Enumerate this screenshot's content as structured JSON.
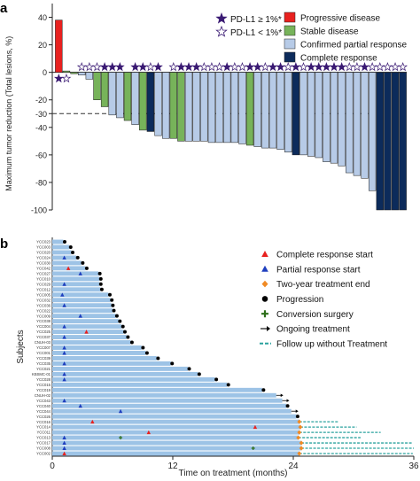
{
  "chart_data": [
    {
      "panel": "a",
      "type": "bar",
      "ylabel": "Maximum tumor reduction (Total lesions, %)",
      "ylim": [
        -100,
        50
      ],
      "yticks": [
        -100,
        -80,
        -60,
        -40,
        -30,
        -20,
        0,
        20,
        40
      ],
      "reference_line": -30,
      "series_colors": {
        "PD": "#e8211f",
        "SD": "#77b35a",
        "PR": "#b7cbe7",
        "CR": "#0c2b5b"
      },
      "legend": [
        {
          "marker": "star-filled",
          "label": "PD-L1 ≥ 1%*"
        },
        {
          "marker": "star-open",
          "label": "PD-L1 < 1%*"
        },
        {
          "swatch": "PD",
          "label": "Progressive disease"
        },
        {
          "swatch": "SD",
          "label": "Stable disease"
        },
        {
          "swatch": "PR",
          "label": "Confirmed partial response"
        },
        {
          "swatch": "CR",
          "label": "Complete response"
        }
      ],
      "bars": [
        {
          "value": 38,
          "response": "PD",
          "pdl1": "pos"
        },
        {
          "value": 1,
          "response": "SD",
          "pdl1": "neg"
        },
        {
          "value": -1,
          "response": "SD",
          "pdl1": "none"
        },
        {
          "value": -2,
          "response": "PR",
          "pdl1": "neg"
        },
        {
          "value": -5,
          "response": "PR",
          "pdl1": "neg"
        },
        {
          "value": -20,
          "response": "SD",
          "pdl1": "neg"
        },
        {
          "value": -25,
          "response": "SD",
          "pdl1": "pos"
        },
        {
          "value": -31,
          "response": "PR",
          "pdl1": "pos"
        },
        {
          "value": -33,
          "response": "PR",
          "pdl1": "pos"
        },
        {
          "value": -35,
          "response": "SD",
          "pdl1": "none"
        },
        {
          "value": -38,
          "response": "PR",
          "pdl1": "pos"
        },
        {
          "value": -42,
          "response": "SD",
          "pdl1": "pos"
        },
        {
          "value": -43,
          "response": "CR",
          "pdl1": "neg"
        },
        {
          "value": -46,
          "response": "PR",
          "pdl1": "pos"
        },
        {
          "value": -48,
          "response": "PR",
          "pdl1": "none"
        },
        {
          "value": -48,
          "response": "SD",
          "pdl1": "neg"
        },
        {
          "value": -50,
          "response": "SD",
          "pdl1": "pos"
        },
        {
          "value": -50,
          "response": "PR",
          "pdl1": "pos"
        },
        {
          "value": -50,
          "response": "PR",
          "pdl1": "pos"
        },
        {
          "value": -50,
          "response": "PR",
          "pdl1": "neg"
        },
        {
          "value": -51,
          "response": "PR",
          "pdl1": "neg"
        },
        {
          "value": -51,
          "response": "PR",
          "pdl1": "neg"
        },
        {
          "value": -51,
          "response": "PR",
          "pdl1": "pos"
        },
        {
          "value": -51,
          "response": "PR",
          "pdl1": "neg"
        },
        {
          "value": -52,
          "response": "PR",
          "pdl1": "neg"
        },
        {
          "value": -53,
          "response": "SD",
          "pdl1": "pos"
        },
        {
          "value": -54,
          "response": "PR",
          "pdl1": "pos"
        },
        {
          "value": -55,
          "response": "PR",
          "pdl1": "neg"
        },
        {
          "value": -55,
          "response": "PR",
          "pdl1": "pos"
        },
        {
          "value": -56,
          "response": "PR",
          "pdl1": "pos"
        },
        {
          "value": -58,
          "response": "PR",
          "pdl1": "neg"
        },
        {
          "value": -60,
          "response": "CR",
          "pdl1": "pos"
        },
        {
          "value": -60,
          "response": "PR",
          "pdl1": "neg"
        },
        {
          "value": -61,
          "response": "PR",
          "pdl1": "pos"
        },
        {
          "value": -62,
          "response": "PR",
          "pdl1": "pos"
        },
        {
          "value": -65,
          "response": "PR",
          "pdl1": "pos"
        },
        {
          "value": -66,
          "response": "PR",
          "pdl1": "pos"
        },
        {
          "value": -68,
          "response": "PR",
          "pdl1": "pos"
        },
        {
          "value": -73,
          "response": "PR",
          "pdl1": "neg"
        },
        {
          "value": -75,
          "response": "PR",
          "pdl1": "neg"
        },
        {
          "value": -77,
          "response": "PR",
          "pdl1": "pos"
        },
        {
          "value": -86,
          "response": "PR",
          "pdl1": "neg"
        },
        {
          "value": -100,
          "response": "CR",
          "pdl1": "neg"
        },
        {
          "value": -100,
          "response": "CR",
          "pdl1": "neg"
        },
        {
          "value": -100,
          "response": "CR",
          "pdl1": "neg"
        },
        {
          "value": -100,
          "response": "CR",
          "pdl1": "neg"
        }
      ]
    },
    {
      "panel": "b",
      "type": "swimmer",
      "xlabel": "Time on treatment (months)",
      "ylabel": "Subjects",
      "xlim": [
        0,
        36
      ],
      "xticks": [
        0,
        12,
        24,
        36
      ],
      "colors": {
        "bar": "#9dc3e6",
        "complete": "#e8211f",
        "partial": "#1f3fbf",
        "two_year_end": "#f08a24",
        "progression": "#000000",
        "conversion": "#2d6e1a",
        "follow_up": "#2aa29e"
      },
      "legend": [
        {
          "marker": "triangle-red",
          "label": "Complete response start"
        },
        {
          "marker": "triangle-blue",
          "label": "Partial response start"
        },
        {
          "marker": "diamond-orange",
          "label": "Two-year treatment end"
        },
        {
          "marker": "circle-black",
          "label": "Progression"
        },
        {
          "marker": "plus-green",
          "label": "Conversion surgery"
        },
        {
          "marker": "arrow-black",
          "label": "Ongoing treatment"
        },
        {
          "marker": "dash-teal",
          "label": "Follow up without Treatment"
        }
      ],
      "subjects": [
        {
          "id": "YCC023",
          "end": 1.1,
          "resp": null,
          "resp_t": null,
          "outcome": "prog"
        },
        {
          "id": "YCC003",
          "end": 1.7,
          "resp": null,
          "resp_t": null,
          "outcome": "prog"
        },
        {
          "id": "YCC020",
          "end": 1.9,
          "resp": null,
          "resp_t": null,
          "outcome": "prog"
        },
        {
          "id": "YCC024",
          "end": 2.4,
          "resp": "partial",
          "resp_t": 1.2,
          "outcome": "prog"
        },
        {
          "id": "YCC030",
          "end": 2.9,
          "resp": null,
          "resp_t": null,
          "outcome": "prog"
        },
        {
          "id": "YCC042",
          "end": 3.3,
          "resp": "complete",
          "resp_t": 1.6,
          "outcome": "prog"
        },
        {
          "id": "YCC027",
          "end": 4.6,
          "resp": "partial",
          "resp_t": 2.8,
          "outcome": "prog"
        },
        {
          "id": "YCC010",
          "end": 4.7,
          "resp": null,
          "resp_t": null,
          "outcome": "prog"
        },
        {
          "id": "YCC029",
          "end": 4.7,
          "resp": "partial",
          "resp_t": 1.2,
          "outcome": "prog"
        },
        {
          "id": "YCC012",
          "end": 4.8,
          "resp": null,
          "resp_t": null,
          "outcome": "prog"
        },
        {
          "id": "YCC005",
          "end": 5.6,
          "resp": "partial",
          "resp_t": 1.0,
          "outcome": "prog"
        },
        {
          "id": "YCC032",
          "end": 5.8,
          "resp": null,
          "resp_t": null,
          "outcome": "prog"
        },
        {
          "id": "YCC036",
          "end": 5.9,
          "resp": "partial",
          "resp_t": 1.2,
          "outcome": "prog"
        },
        {
          "id": "YCC022",
          "end": 6.0,
          "resp": null,
          "resp_t": null,
          "outcome": "prog"
        },
        {
          "id": "YCC009",
          "end": 6.3,
          "resp": "partial",
          "resp_t": 2.8,
          "outcome": "prog"
        },
        {
          "id": "YCC038",
          "end": 6.6,
          "resp": null,
          "resp_t": null,
          "outcome": "prog"
        },
        {
          "id": "YCC004",
          "end": 6.9,
          "resp": "partial",
          "resp_t": 1.2,
          "outcome": "prog"
        },
        {
          "id": "YCC025",
          "end": 7.1,
          "resp": "complete",
          "resp_t": 3.4,
          "outcome": "prog"
        },
        {
          "id": "YCC037",
          "end": 7.4,
          "resp": "partial",
          "resp_t": 1.2,
          "outcome": "prog"
        },
        {
          "id": "CNUH-03",
          "end": 7.8,
          "resp": null,
          "resp_t": null,
          "outcome": "prog"
        },
        {
          "id": "YCC007",
          "end": 8.9,
          "resp": "partial",
          "resp_t": 1.2,
          "outcome": "prog"
        },
        {
          "id": "YCC001",
          "end": 9.3,
          "resp": "partial",
          "resp_t": 1.2,
          "outcome": "prog"
        },
        {
          "id": "YCC039",
          "end": 10.4,
          "resp": null,
          "resp_t": null,
          "outcome": "prog"
        },
        {
          "id": "YCC035",
          "end": 11.8,
          "resp": "partial",
          "resp_t": 1.2,
          "outcome": "prog"
        },
        {
          "id": "YCC021",
          "end": 13.5,
          "resp": null,
          "resp_t": null,
          "outcome": "prog"
        },
        {
          "id": "KBSMC-01",
          "end": 14.5,
          "resp": "partial",
          "resp_t": 1.2,
          "outcome": "prog"
        },
        {
          "id": "YCC028",
          "end": 16.2,
          "resp": "partial",
          "resp_t": 1.2,
          "outcome": "prog"
        },
        {
          "id": "YCC015",
          "end": 17.4,
          "resp": null,
          "resp_t": null,
          "outcome": "prog"
        },
        {
          "id": "YCC019",
          "end": 20.9,
          "resp": null,
          "resp_t": null,
          "outcome": "prog"
        },
        {
          "id": "CNUH-02",
          "end": 22.3,
          "resp": null,
          "resp_t": null,
          "outcome": "ongoing"
        },
        {
          "id": "YCC043",
          "end": 22.9,
          "resp": "partial",
          "resp_t": 1.2,
          "outcome": "ongoing"
        },
        {
          "id": "YCC040",
          "end": 23.3,
          "resp": "partial",
          "resp_t": 2.8,
          "outcome": "prog"
        },
        {
          "id": "YCC044",
          "end": 23.8,
          "resp": "partial",
          "resp_t": 6.8,
          "outcome": "ongoing"
        },
        {
          "id": "YCC026",
          "end": 24.3,
          "resp": null,
          "resp_t": null,
          "outcome": "prog"
        },
        {
          "id": "YCC016",
          "end": 24.6,
          "resp": "complete",
          "resp_t": 4.0,
          "outcome": "two_year",
          "follow": 28.5
        },
        {
          "id": "YCC014",
          "end": 24.7,
          "resp": "complete",
          "resp_t": 20.2,
          "outcome": "two_year",
          "follow": 30.3
        },
        {
          "id": "YCC011",
          "end": 24.6,
          "resp": "complete",
          "resp_t": 9.6,
          "outcome": "two_year",
          "follow": 32.7
        },
        {
          "id": "YCC013",
          "end": 24.5,
          "resp": "partial",
          "resp_t": 1.2,
          "outcome": "two_year",
          "follow": 30.7,
          "surgery": 6.8
        },
        {
          "id": "YCC017",
          "end": 24.8,
          "resp": "partial",
          "resp_t": 1.2,
          "outcome": "two_year",
          "follow": 35.8
        },
        {
          "id": "YCC008",
          "end": 24.8,
          "resp": "partial",
          "resp_t": 1.2,
          "outcome": "two_year",
          "follow": 36.0,
          "surgery": 20.0
        },
        {
          "id": "YCC002",
          "end": 24.6,
          "resp": "complete",
          "resp_t": 1.2,
          "outcome": "two_year",
          "follow": 35.9
        }
      ]
    }
  ],
  "panel_labels": {
    "a": "a",
    "b": "b"
  }
}
